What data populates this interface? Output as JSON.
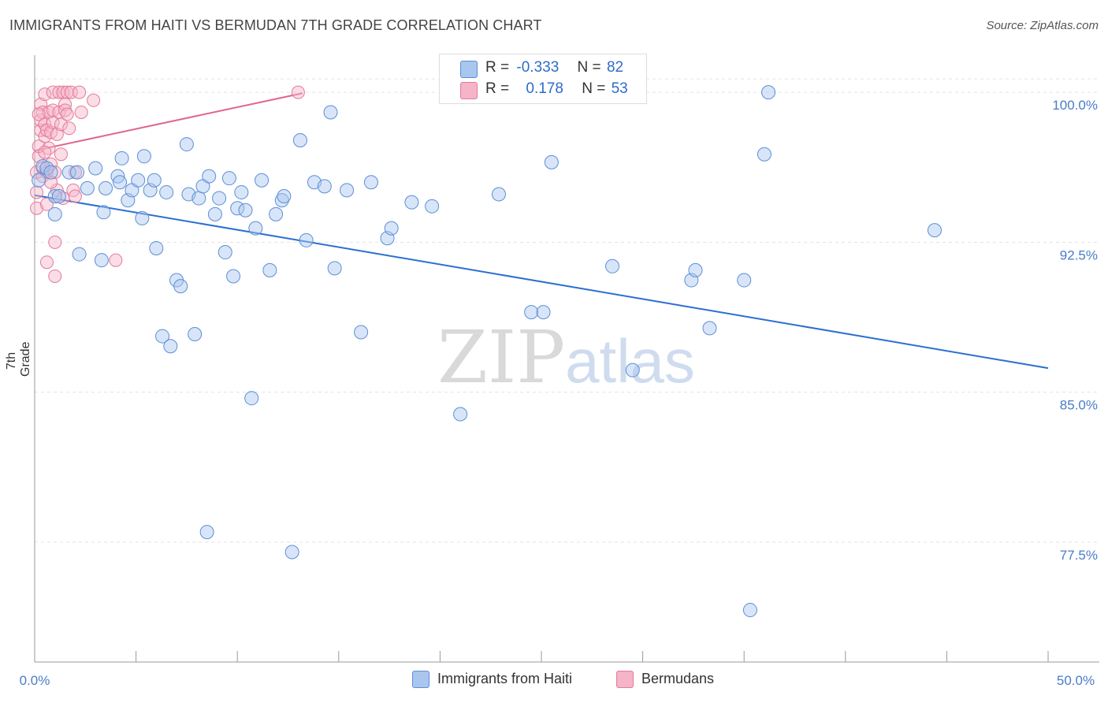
{
  "title": "IMMIGRANTS FROM HAITI VS BERMUDAN 7TH GRADE CORRELATION CHART",
  "source": "Source: ZipAtlas.com",
  "watermark": {
    "zip": "ZIP",
    "atlas": "atlas"
  },
  "stats": {
    "haiti": {
      "r_label": "R =",
      "r_value": "-0.333",
      "n_label": "N =",
      "n_value": "82"
    },
    "bermudans": {
      "r_label": "R =",
      "r_value": "0.178",
      "n_label": "N =",
      "n_value": "53"
    }
  },
  "legend": {
    "haiti": "Immigrants from Haiti",
    "bermudans": "Bermudans"
  },
  "colors": {
    "haiti_fill": "#a9c6ef",
    "haiti_stroke": "#5b8fd6",
    "haiti_line": "#2a6fd0",
    "berm_fill": "#f6b4c8",
    "berm_stroke": "#e27a9c",
    "berm_line": "#e0658f",
    "tick_text": "#4a7cc7",
    "grid": "#e3e3e3"
  },
  "chart_data": {
    "type": "scatter",
    "title": "IMMIGRANTS FROM HAITI VS BERMUDAN 7TH GRADE CORRELATION CHART",
    "xlabel": "",
    "ylabel": "7th Grade",
    "xlim": [
      0,
      50
    ],
    "ylim": [
      71.5,
      101.7
    ],
    "x_tick_labels": [
      "0.0%",
      "50.0%"
    ],
    "y_ticks": [
      77.5,
      85.0,
      92.5,
      100.0
    ],
    "y_tick_labels": [
      "77.5%",
      "85.0%",
      "92.5%",
      "100.0%"
    ],
    "grid": "horizontal dashed",
    "legend_position": "bottom",
    "series": [
      {
        "name": "Immigrants from Haiti",
        "points": [
          [
            0.2,
            95.6
          ],
          [
            0.4,
            96.3
          ],
          [
            0.6,
            96.2
          ],
          [
            0.8,
            96.0
          ],
          [
            1.0,
            94.8
          ],
          [
            1.2,
            94.8
          ],
          [
            1.0,
            93.9
          ],
          [
            1.7,
            96.0
          ],
          [
            2.1,
            96.0
          ],
          [
            2.6,
            95.2
          ],
          [
            3.0,
            96.2
          ],
          [
            2.2,
            91.9
          ],
          [
            3.3,
            91.6
          ],
          [
            3.4,
            94.0
          ],
          [
            3.5,
            95.2
          ],
          [
            4.1,
            95.8
          ],
          [
            4.2,
            95.5
          ],
          [
            4.3,
            96.7
          ],
          [
            4.6,
            94.6
          ],
          [
            4.8,
            95.1
          ],
          [
            5.1,
            95.6
          ],
          [
            5.3,
            93.7
          ],
          [
            5.4,
            96.8
          ],
          [
            5.7,
            95.1
          ],
          [
            5.9,
            95.6
          ],
          [
            6.0,
            92.2
          ],
          [
            6.3,
            87.8
          ],
          [
            6.5,
            95.0
          ],
          [
            6.7,
            87.3
          ],
          [
            7.0,
            90.6
          ],
          [
            7.2,
            90.3
          ],
          [
            7.5,
            97.4
          ],
          [
            7.6,
            94.9
          ],
          [
            7.9,
            87.9
          ],
          [
            8.1,
            94.7
          ],
          [
            8.3,
            95.3
          ],
          [
            8.6,
            95.8
          ],
          [
            8.5,
            78.0
          ],
          [
            8.9,
            93.9
          ],
          [
            9.1,
            94.7
          ],
          [
            9.4,
            92.0
          ],
          [
            9.6,
            95.7
          ],
          [
            9.8,
            90.8
          ],
          [
            10.0,
            94.2
          ],
          [
            10.4,
            94.1
          ],
          [
            10.7,
            84.7
          ],
          [
            10.9,
            93.2
          ],
          [
            11.2,
            95.6
          ],
          [
            11.6,
            91.1
          ],
          [
            11.9,
            93.9
          ],
          [
            12.2,
            94.6
          ],
          [
            12.3,
            94.8
          ],
          [
            12.7,
            77.0
          ],
          [
            13.1,
            97.6
          ],
          [
            13.4,
            92.6
          ],
          [
            13.8,
            95.5
          ],
          [
            14.3,
            95.3
          ],
          [
            14.6,
            99.0
          ],
          [
            14.8,
            91.2
          ],
          [
            15.4,
            95.1
          ],
          [
            16.1,
            88.0
          ],
          [
            16.6,
            95.5
          ],
          [
            17.4,
            92.7
          ],
          [
            17.6,
            93.2
          ],
          [
            18.6,
            94.5
          ],
          [
            19.6,
            94.3
          ],
          [
            21.0,
            83.9
          ],
          [
            22.9,
            94.9
          ],
          [
            24.5,
            89.0
          ],
          [
            25.1,
            89.0
          ],
          [
            25.5,
            96.5
          ],
          [
            28.5,
            91.3
          ],
          [
            29.5,
            86.1
          ],
          [
            32.4,
            90.6
          ],
          [
            32.6,
            91.1
          ],
          [
            33.3,
            88.2
          ],
          [
            35.0,
            90.6
          ],
          [
            36.0,
            96.9
          ],
          [
            36.2,
            100.0
          ],
          [
            35.3,
            74.1
          ],
          [
            44.4,
            93.1
          ],
          [
            10.2,
            95.0
          ]
        ],
        "trend": [
          [
            0,
            94.85
          ],
          [
            50,
            86.2
          ]
        ]
      },
      {
        "name": "Bermudans",
        "points": [
          [
            0.1,
            96.0
          ],
          [
            0.1,
            95.0
          ],
          [
            0.1,
            94.2
          ],
          [
            0.2,
            96.8
          ],
          [
            0.2,
            97.3
          ],
          [
            0.3,
            98.1
          ],
          [
            0.3,
            98.6
          ],
          [
            0.3,
            99.4
          ],
          [
            0.4,
            99.0
          ],
          [
            0.4,
            96.2
          ],
          [
            0.4,
            95.8
          ],
          [
            0.5,
            97.8
          ],
          [
            0.5,
            98.4
          ],
          [
            0.5,
            99.9
          ],
          [
            0.6,
            98.1
          ],
          [
            0.6,
            96.0
          ],
          [
            0.6,
            94.4
          ],
          [
            0.6,
            91.5
          ],
          [
            0.7,
            99.0
          ],
          [
            0.7,
            97.2
          ],
          [
            0.8,
            98.0
          ],
          [
            0.8,
            96.4
          ],
          [
            0.9,
            100.0
          ],
          [
            0.9,
            98.5
          ],
          [
            0.9,
            99.1
          ],
          [
            1.0,
            92.5
          ],
          [
            1.0,
            90.8
          ],
          [
            1.0,
            96.0
          ],
          [
            1.1,
            97.9
          ],
          [
            1.1,
            95.1
          ],
          [
            1.2,
            100.0
          ],
          [
            1.2,
            99.0
          ],
          [
            1.3,
            98.4
          ],
          [
            1.3,
            96.9
          ],
          [
            1.4,
            100.0
          ],
          [
            1.4,
            94.7
          ],
          [
            1.5,
            99.4
          ],
          [
            1.5,
            99.1
          ],
          [
            1.6,
            100.0
          ],
          [
            1.7,
            98.2
          ],
          [
            1.8,
            100.0
          ],
          [
            1.9,
            95.1
          ],
          [
            2.0,
            96.0
          ],
          [
            2.0,
            94.8
          ],
          [
            2.2,
            100.0
          ],
          [
            2.3,
            99.0
          ],
          [
            2.9,
            99.6
          ],
          [
            4.0,
            91.6
          ],
          [
            13.0,
            100.0
          ],
          [
            0.2,
            98.9
          ],
          [
            0.8,
            95.5
          ],
          [
            1.6,
            98.9
          ],
          [
            0.5,
            97.0
          ]
        ],
        "trend": [
          [
            0,
            97.08
          ],
          [
            13.2,
            99.95
          ]
        ]
      }
    ]
  }
}
